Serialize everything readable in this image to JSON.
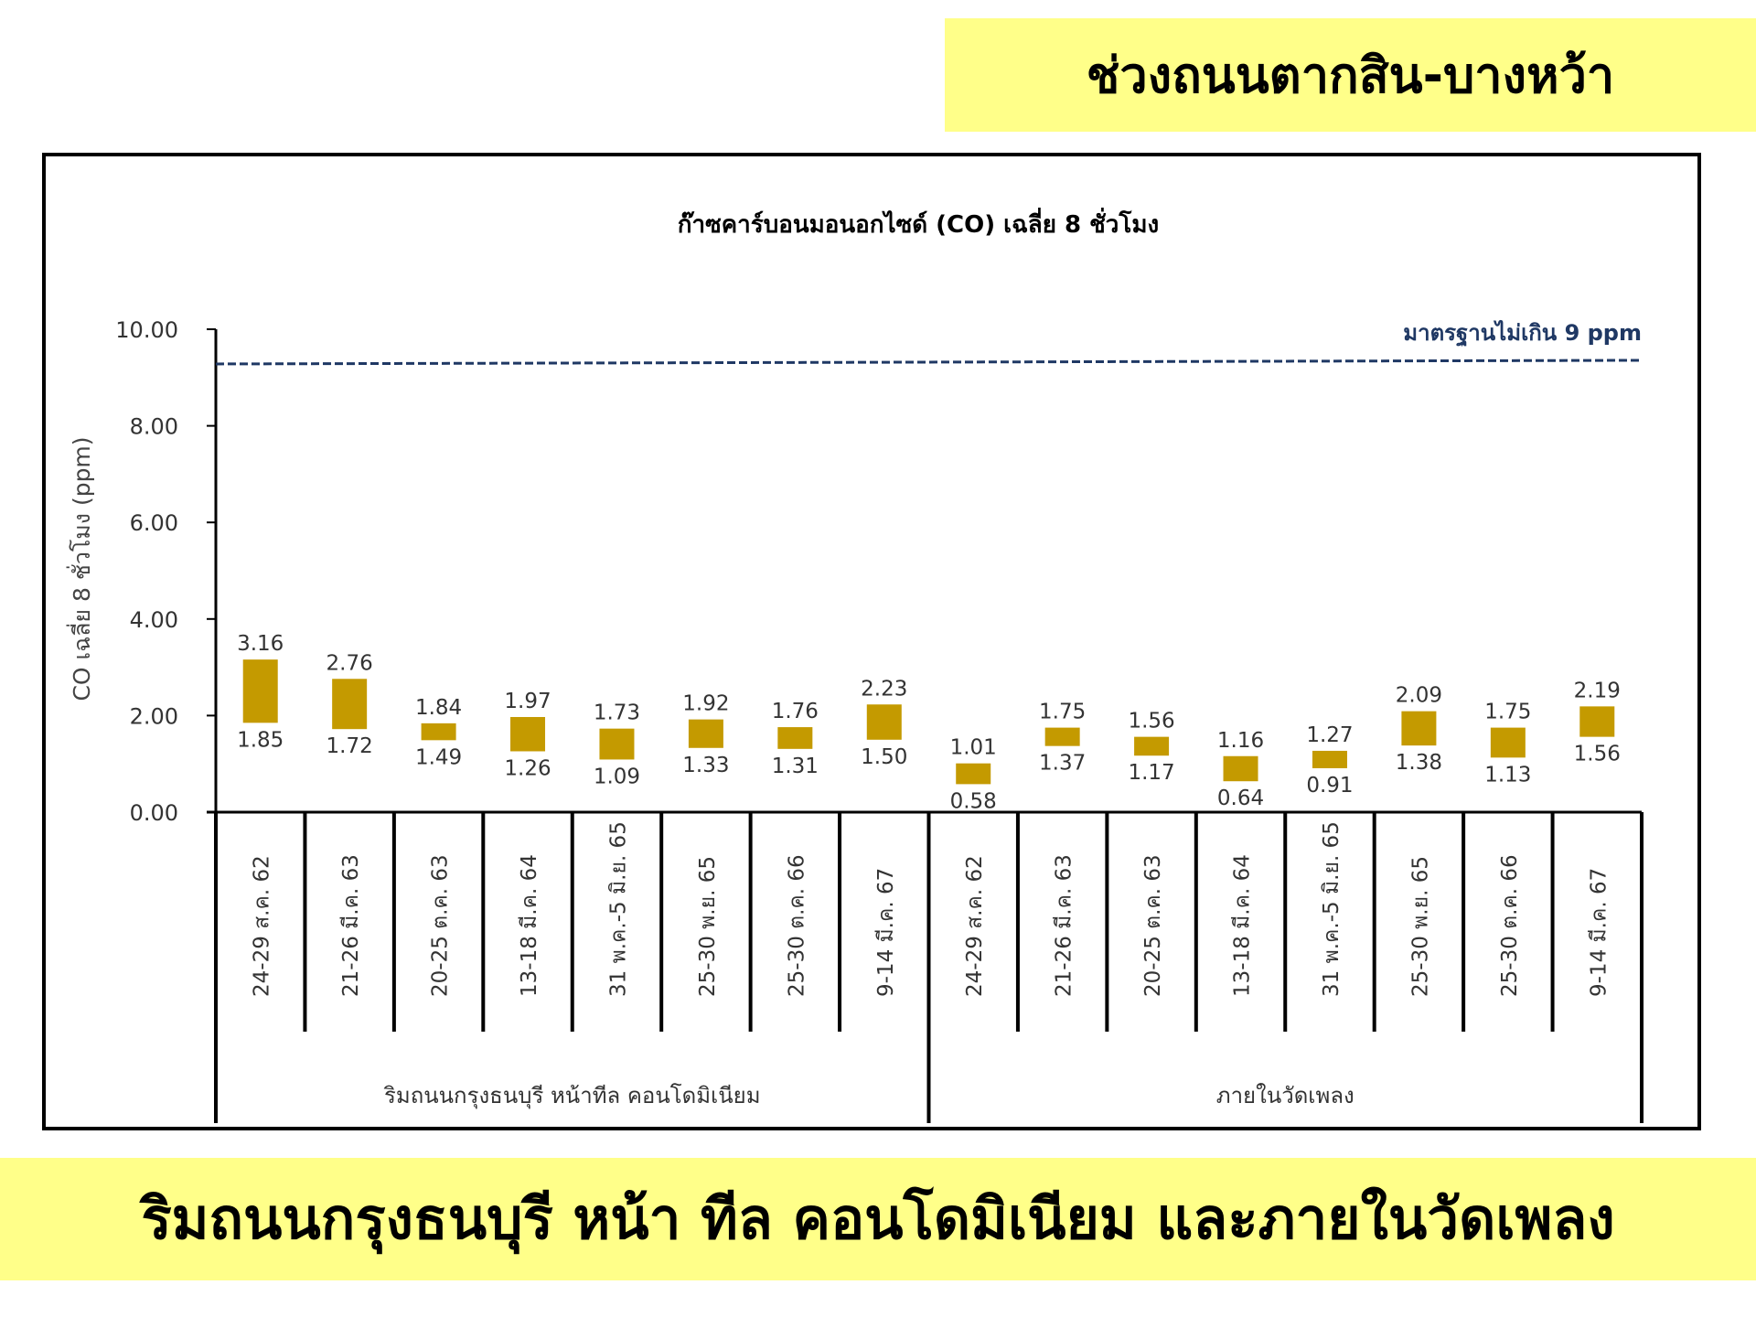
{
  "header": {
    "title": "ช่วงถนนตากสิน-บางหว้า"
  },
  "footer": {
    "title": "ริมถนนกรุงธนบุรี หน้า ทีล คอนโดมิเนียม และภายในวัดเพลง"
  },
  "colors": {
    "bar": "#c49a00",
    "standard_line": "#1f3864",
    "banner": "#ffff89",
    "axis": "#000000"
  },
  "chart_data": {
    "type": "bar",
    "title": "ก๊าซคาร์บอนมอนอกไซด์ (CO) เฉลี่ย 8 ชั่วโมง",
    "ylabel": "CO เฉลี่ย 8 ชั่วโมง (ppm)",
    "ylim": [
      0,
      10
    ],
    "yticks": [
      "0.00",
      "2.00",
      "4.00",
      "6.00",
      "8.00",
      "10.00"
    ],
    "categories": [
      "24-29 ส.ค. 62",
      "21-26 มี.ค. 63",
      "20-25 ต.ค. 63",
      "13-18 มี.ค. 64",
      "31 พ.ค.-5 มิ.ย. 65",
      "25-30 พ.ย. 65",
      "25-30 ต.ค. 66",
      "9-14 มี.ค. 67",
      "24-29 ส.ค. 62",
      "21-26 มี.ค. 63",
      "20-25 ต.ค. 63",
      "13-18 มี.ค. 64",
      "31 พ.ค.-5 มิ.ย. 65",
      "25-30 พ.ย. 65",
      "25-30 ต.ค. 66",
      "9-14 มี.ค. 67"
    ],
    "groups": [
      {
        "name": "ริมถนนกรุงธนบุรี หน้าทีล คอนโดมิเนียม",
        "count": 8
      },
      {
        "name": "ภายในวัดเพลง",
        "count": 8
      }
    ],
    "series": [
      {
        "values_low": [
          "1.85",
          "1.72",
          "1.49",
          "1.26",
          "1.09",
          "1.33",
          "1.31",
          "1.50",
          "0.58",
          "1.37",
          "1.17",
          "0.64",
          "0.91",
          "1.38",
          "1.13",
          "1.56"
        ]
      },
      {
        "values_high": [
          "3.16",
          "2.76",
          "1.84",
          "1.97",
          "1.73",
          "1.92",
          "1.76",
          "2.23",
          "1.01",
          "1.75",
          "1.56",
          "1.16",
          "1.27",
          "2.09",
          "1.75",
          "2.19"
        ]
      }
    ],
    "standard": {
      "value": 9.3,
      "label": "มาตรฐานไม่เกิน 9 ppm"
    },
    "grid": false,
    "legend": "none"
  }
}
